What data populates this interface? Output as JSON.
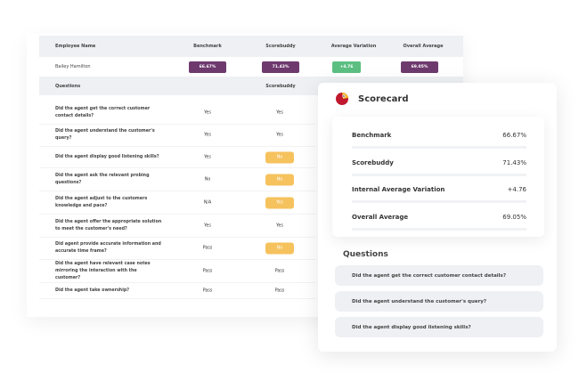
{
  "table": {
    "headers": [
      "Employee Name",
      "Benchmark",
      "Scorebuddy",
      "Average Variation",
      "Overall Average"
    ],
    "employee": {
      "name": "Bailey Hamilton",
      "benchmark": "66.67%",
      "scorebuddy": "71.43%",
      "variation": "+4.76",
      "overall": "69.05%"
    },
    "questions_header": "Questions",
    "scorebuddy_header": "Scorebuddy",
    "rows": [
      {
        "q": "Did the agent get the correct customer contact details?",
        "b": "Yes",
        "s": "Yes",
        "hl": false
      },
      {
        "q": "Did the agent understand the customer's query?",
        "b": "Yes",
        "s": "Yes",
        "hl": false
      },
      {
        "q": "Did the agent display good listening skills?",
        "b": "Yes",
        "s": "No",
        "hl": true
      },
      {
        "q": "Did the agent ask the relevant probing questions?",
        "b": "No",
        "s": "No",
        "hl": true
      },
      {
        "q": "Did the agent adjust to the customers knowledge and pace?",
        "b": "N/A",
        "s": "Yes",
        "hl": true
      },
      {
        "q": "Did the agent offer the appropriate solution to meet the customer's need?",
        "b": "Yes",
        "s": "Yes",
        "hl": false
      },
      {
        "q": "Did agent provide accurate information and accurate time frame?",
        "b": "Pass",
        "s": "No",
        "hl": true
      },
      {
        "q": "Did the agent have relevant case notes mirroring the interaction with the customer?",
        "b": "Pass",
        "s": "Pass",
        "hl": false
      },
      {
        "q": "Did the agent take ownership?",
        "b": "Pass",
        "s": "Pass",
        "hl": false
      }
    ]
  },
  "colors": {
    "purple": "#6e3a6e",
    "green": "#5cbf82",
    "yellow": "#f6c25e"
  },
  "scorecard": {
    "title": "Scorecard",
    "logo": "parrot-logo",
    "items": [
      {
        "label": "Benchmark",
        "value": "66.67%"
      },
      {
        "label": "Scorebuddy",
        "value": "71.43%"
      },
      {
        "label": "Internal Average Variation",
        "value": "+4.76"
      },
      {
        "label": "Overall Average",
        "value": "69.05%"
      }
    ],
    "questions_title": "Questions",
    "questions": [
      "Did the agent get the correct customer contact details?",
      "Did the agent understand the customer's query?",
      "Did the agent display good listening skills?"
    ]
  }
}
